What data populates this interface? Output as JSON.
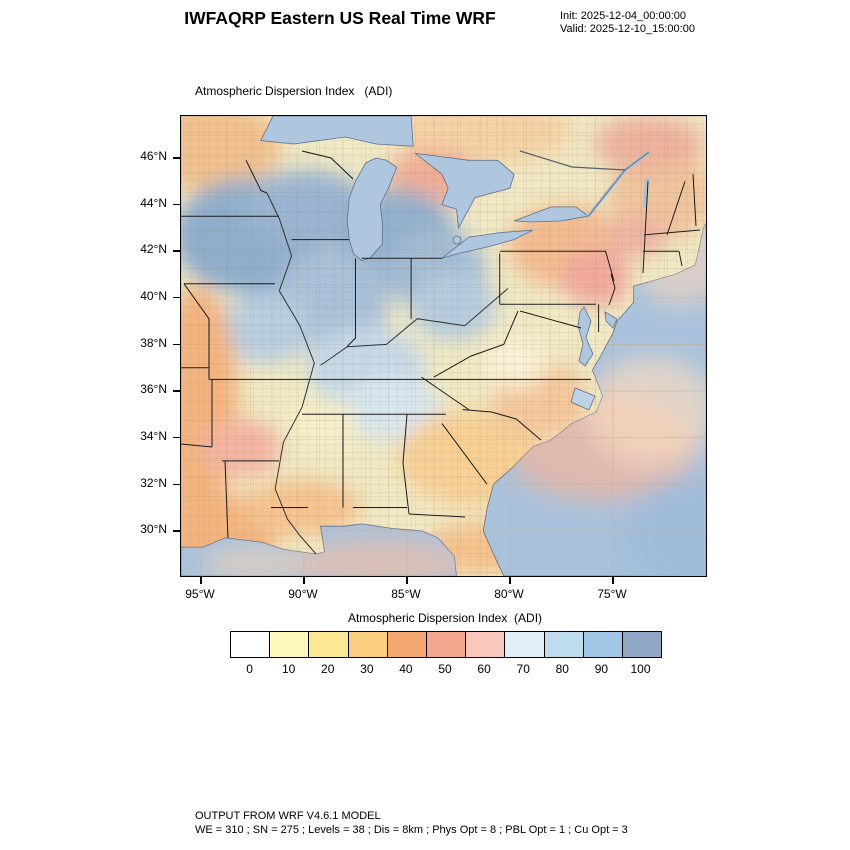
{
  "header": {
    "title": "IWFAQRP Eastern US Real Time WRF",
    "init": "Init: 2025-12-04_00:00:00",
    "valid": "Valid: 2025-12-10_15:00:00"
  },
  "map": {
    "caption": "Atmospheric Dispersion Index   (ADI)",
    "lat_ticks": [
      "46°N",
      "44°N",
      "42°N",
      "40°N",
      "38°N",
      "36°N",
      "34°N",
      "32°N",
      "30°N"
    ],
    "lon_ticks": [
      "95°W",
      "90°W",
      "85°W",
      "80°W",
      "75°W"
    ]
  },
  "colorbar": {
    "title": "Atmospheric Dispersion Index  (ADI)",
    "tick_labels": [
      "0",
      "10",
      "20",
      "30",
      "40",
      "50",
      "60",
      "70",
      "80",
      "90",
      "100"
    ],
    "colors": [
      "#ffffff",
      "#fdf8bc",
      "#fbe892",
      "#f9cf7f",
      "#f6a871",
      "#f4a68e",
      "#f8c8ba",
      "#e2eef6",
      "#bfdcef",
      "#a2c6e6",
      "#90a8c6"
    ]
  },
  "palette": {
    "land": "#f0e9c4",
    "ocean": "#a9c2dc",
    "high_adi_region": "#8fadcd"
  },
  "footer": {
    "line1": "OUTPUT FROM WRF V4.6.1 MODEL",
    "line2": "WE = 310 ; SN = 275 ; Levels = 38 ; Dis = 8km ; Phys Opt = 8 ; PBL Opt = 1 ; Cu Opt = 3"
  }
}
